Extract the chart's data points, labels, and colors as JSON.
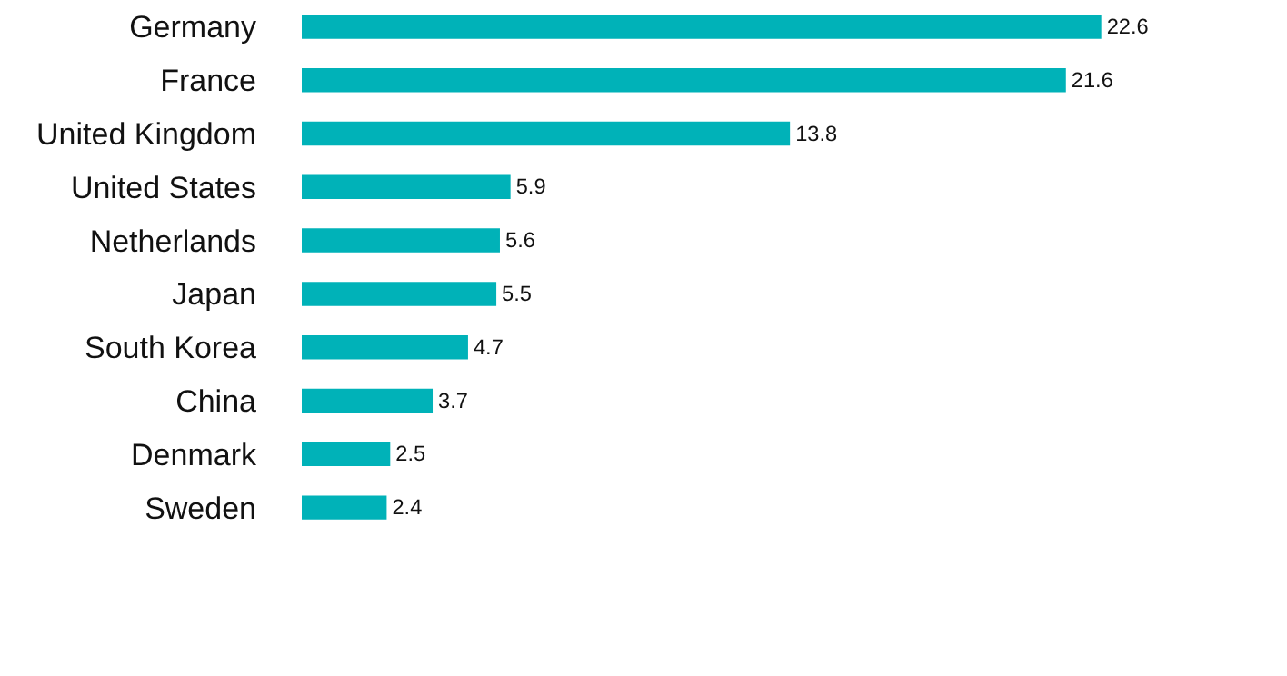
{
  "chart_data": {
    "type": "bar",
    "orientation": "horizontal",
    "categories": [
      "Germany",
      "France",
      "United Kingdom",
      "United States",
      "Netherlands",
      "Japan",
      "South Korea",
      "China",
      "Denmark",
      "Sweden"
    ],
    "values": [
      22.6,
      21.6,
      13.8,
      5.9,
      5.6,
      5.5,
      4.7,
      3.7,
      2.5,
      2.4
    ],
    "color": "#00b2b8",
    "data_labels": true
  }
}
